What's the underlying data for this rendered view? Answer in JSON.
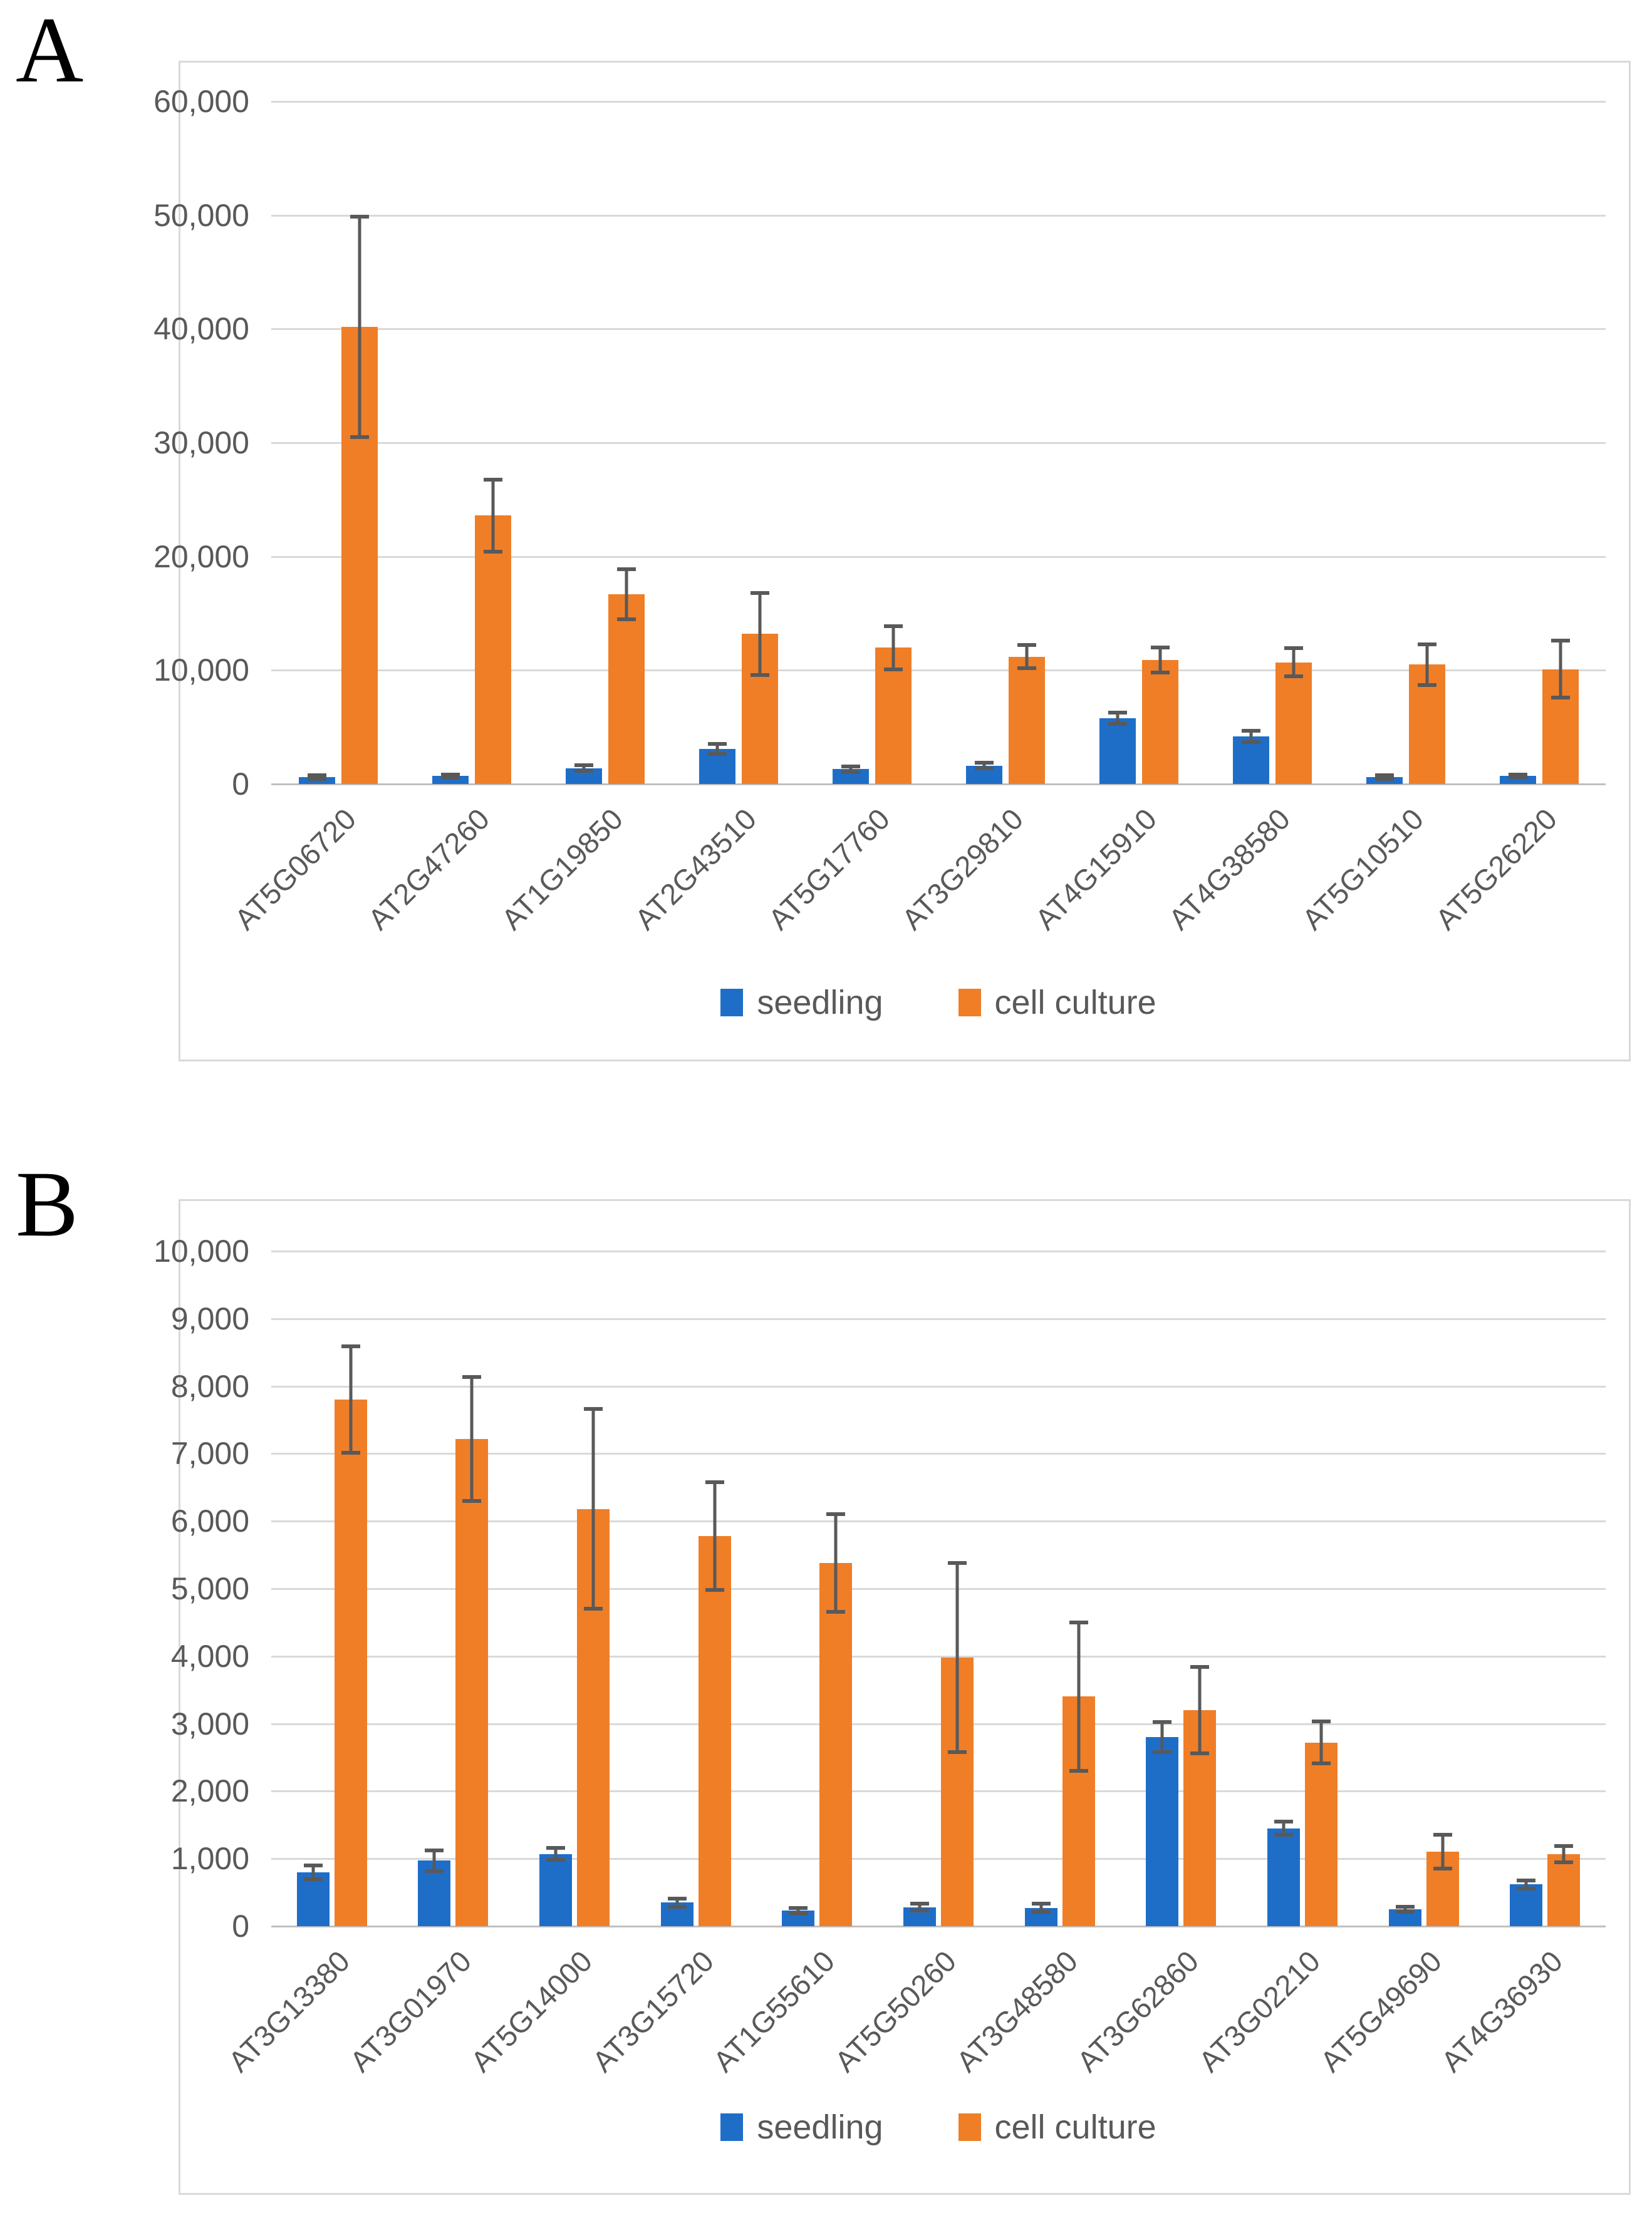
{
  "figure": {
    "panels": [
      {
        "label": "A"
      },
      {
        "label": "B"
      }
    ]
  },
  "colors": {
    "seedling": "#1e6ec8",
    "cell_culture": "#f07e27",
    "error_bar": "#595959",
    "gridline": "#d9d9d9",
    "axis_text": "#595959",
    "panel_border": "#d9d9d9"
  },
  "chart_data": [
    {
      "type": "bar",
      "title": "",
      "xlabel": "",
      "ylabel": "",
      "grid": true,
      "legend_position": "bottom",
      "ylim": [
        0,
        60000
      ],
      "ytick_step": 10000,
      "ytick_labels": [
        "0",
        "10,000",
        "20,000",
        "30,000",
        "40,000",
        "50,000",
        "60,000"
      ],
      "categories": [
        "AT5G06720",
        "AT2G47260",
        "AT1G19850",
        "AT2G43510",
        "AT5G17760",
        "AT3G29810",
        "AT4G15910",
        "AT4G38580",
        "AT5G10510",
        "AT5G26220"
      ],
      "series": [
        {
          "name": "seedling",
          "color": "#1e6ec8",
          "values": [
            600,
            700,
            1400,
            3100,
            1300,
            1600,
            5800,
            4200,
            600,
            700
          ],
          "errors": [
            150,
            150,
            250,
            450,
            250,
            250,
            500,
            500,
            150,
            100
          ]
        },
        {
          "name": "cell culture",
          "color": "#f07e27",
          "values": [
            40200,
            23600,
            16700,
            13200,
            12000,
            11200,
            10900,
            10700,
            10500,
            10100
          ],
          "errors": [
            9700,
            3150,
            2200,
            3600,
            1900,
            1000,
            1100,
            1250,
            1800,
            2500
          ]
        }
      ]
    },
    {
      "type": "bar",
      "title": "",
      "xlabel": "",
      "ylabel": "",
      "grid": true,
      "legend_position": "bottom",
      "ylim": [
        0,
        10000
      ],
      "ytick_step": 1000,
      "ytick_labels": [
        "0",
        "1,000",
        "2,000",
        "3,000",
        "4,000",
        "5,000",
        "6,000",
        "7,000",
        "8,000",
        "9,000",
        "10,000"
      ],
      "categories": [
        "AT3G13380",
        "AT3G01970",
        "AT5G14000",
        "AT3G15720",
        "AT1G55610",
        "AT5G50260",
        "AT3G48580",
        "AT3G62860",
        "AT3G02210",
        "AT5G49690",
        "AT4G36930"
      ],
      "series": [
        {
          "name": "seedling",
          "color": "#1e6ec8",
          "values": [
            800,
            970,
            1070,
            350,
            230,
            280,
            270,
            2800,
            1450,
            250,
            620
          ],
          "errors": [
            100,
            150,
            90,
            60,
            40,
            50,
            60,
            220,
            100,
            40,
            60
          ]
        },
        {
          "name": "cell culture",
          "color": "#f07e27",
          "values": [
            7800,
            7220,
            6180,
            5780,
            5380,
            3980,
            3400,
            3200,
            2720,
            1100,
            1070
          ],
          "errors": [
            790,
            920,
            1480,
            800,
            720,
            1400,
            1100,
            640,
            310,
            250,
            120
          ]
        }
      ]
    }
  ]
}
